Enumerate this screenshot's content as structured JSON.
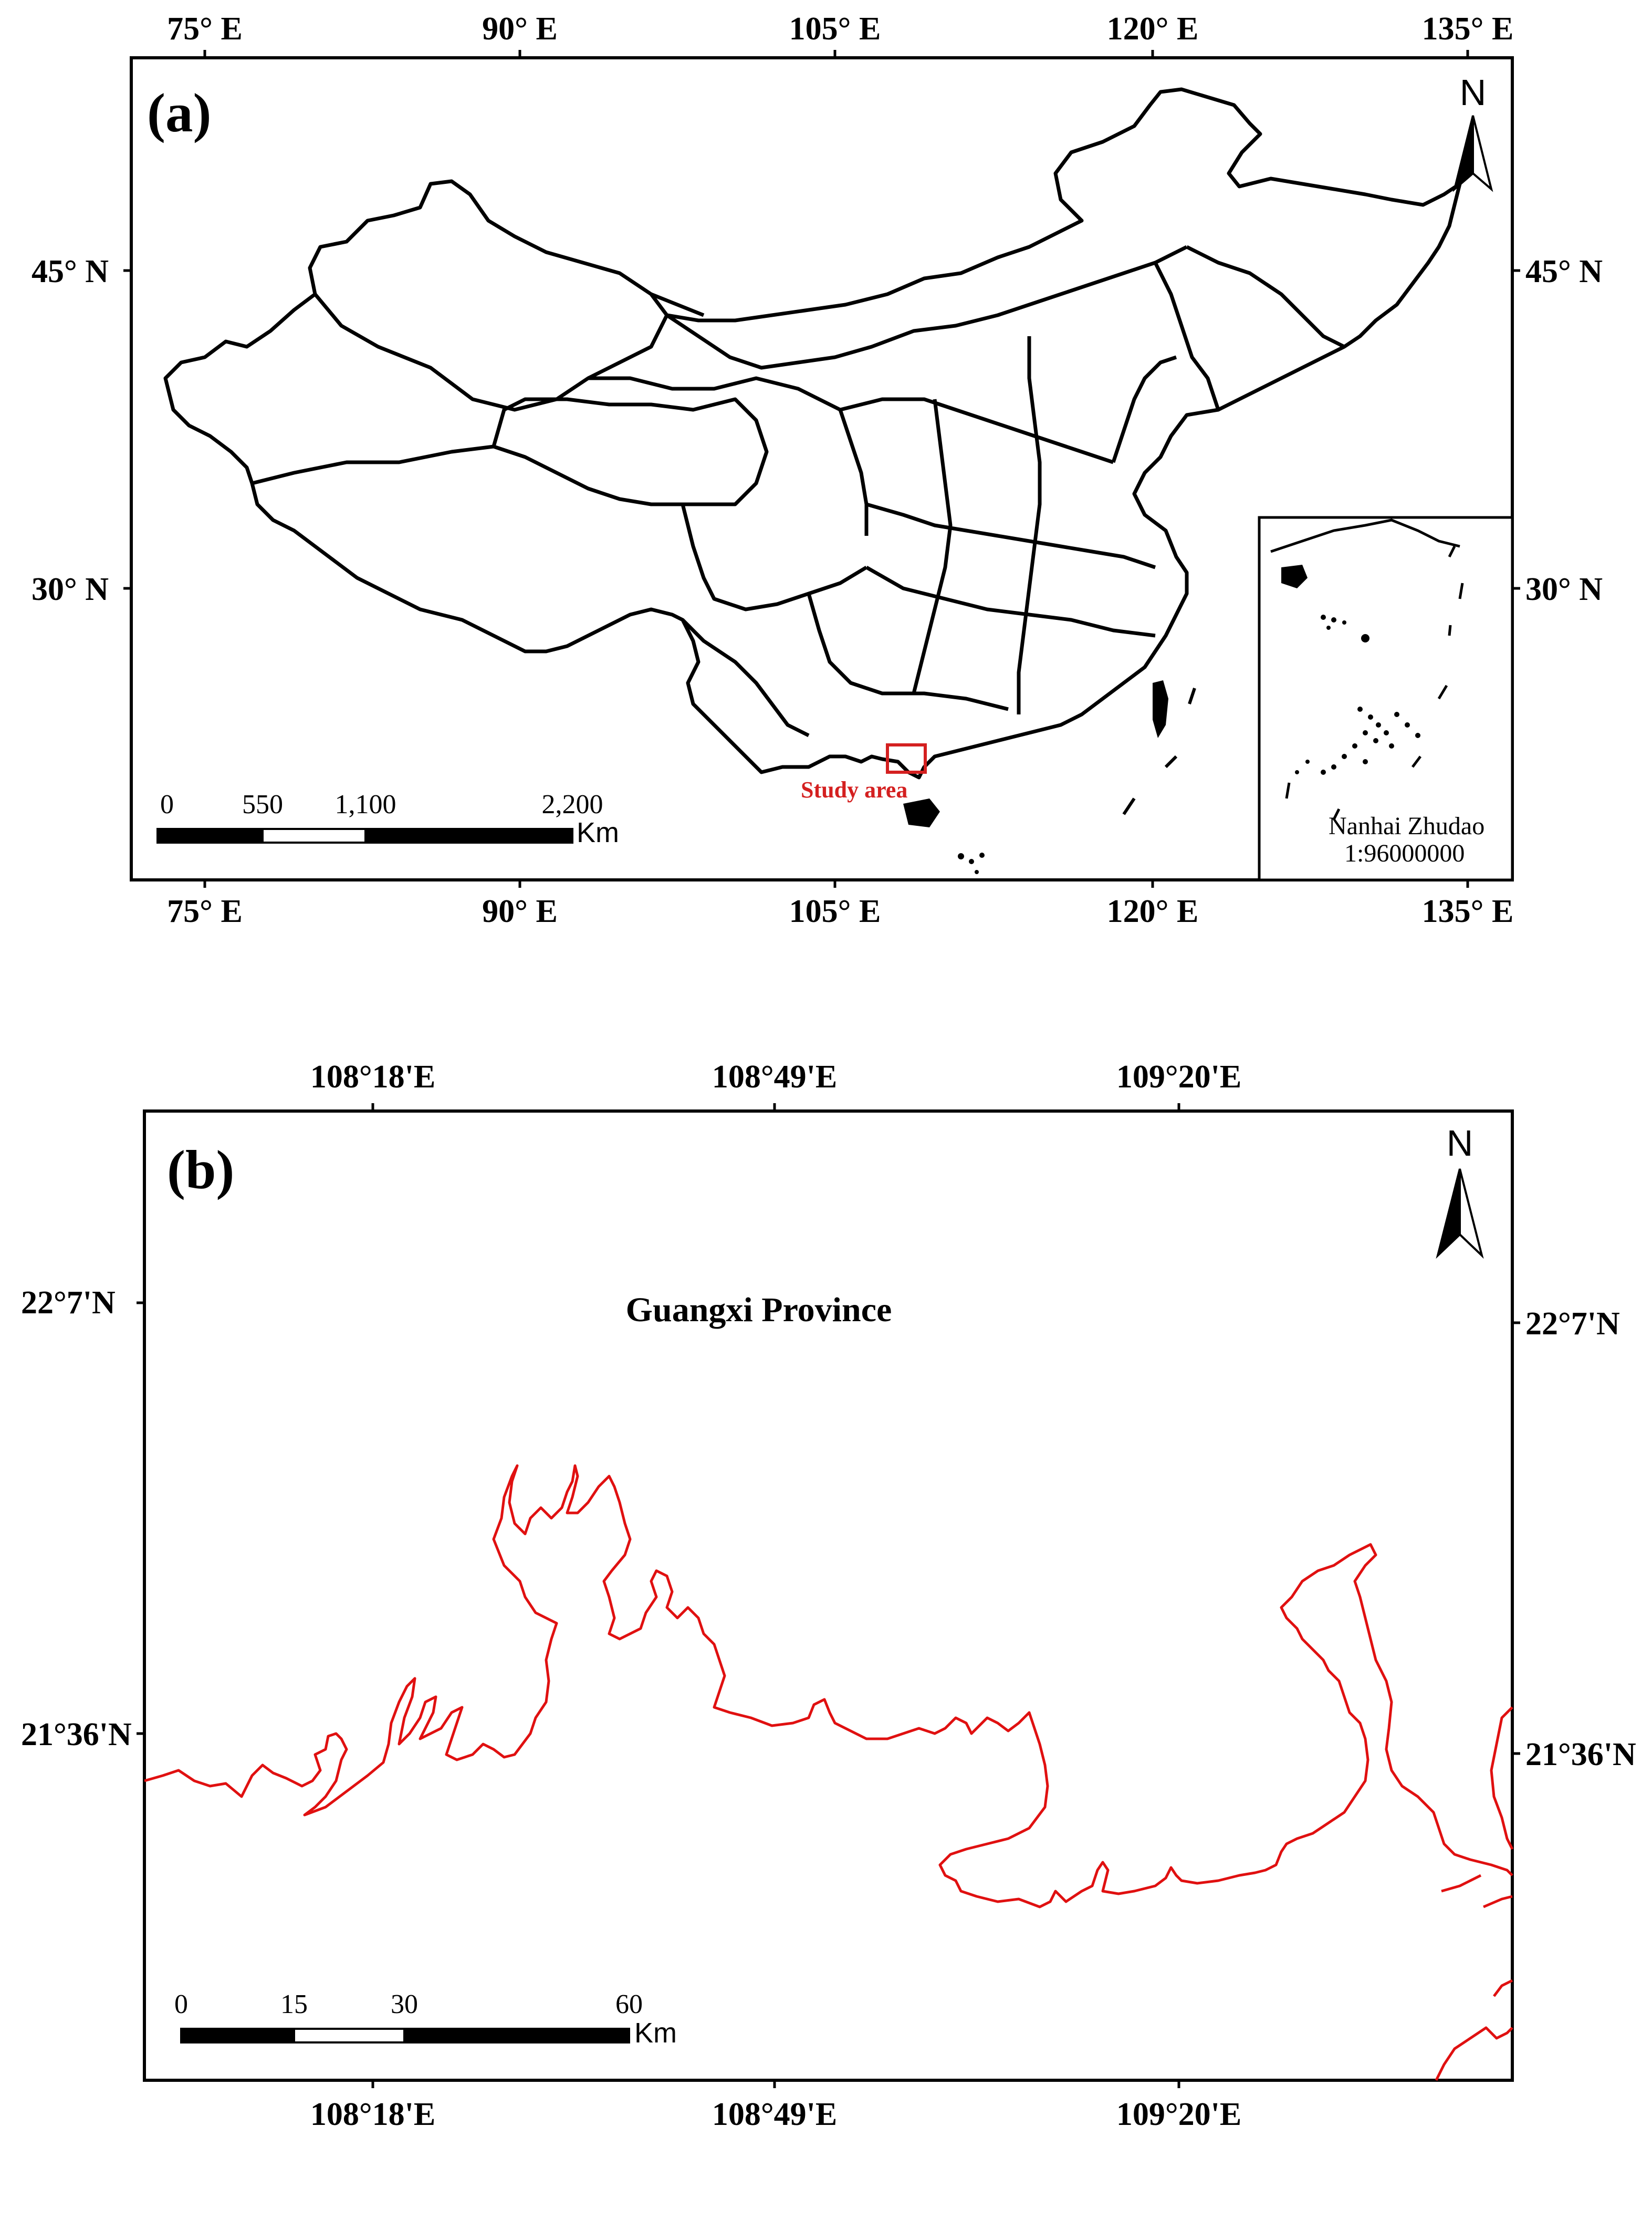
{
  "panel_a": {
    "label": "(a)",
    "top_ticks": [
      "75° E",
      "90° E",
      "105° E",
      "120° E",
      "135° E"
    ],
    "bottom_ticks": [
      "75° E",
      "90° E",
      "105° E",
      "120° E",
      "135° E"
    ],
    "left_ticks": [
      "45° N",
      "30° N"
    ],
    "right_ticks": [
      "45° N",
      "30° N"
    ],
    "north_label": "N",
    "study_area_label": "Study area",
    "scale_labels": [
      "0",
      "550",
      "1,100",
      "2,200"
    ],
    "scale_unit": "Km",
    "inset_title": "Nanhai Zhudao",
    "inset_scale": "1:96000000",
    "study_area_color": "#d42020"
  },
  "panel_b": {
    "label": "(b)",
    "top_ticks": [
      "108°18'E",
      "108°49'E",
      "109°20'E"
    ],
    "bottom_ticks": [
      "108°18'E",
      "108°49'E",
      "109°20'E"
    ],
    "left_ticks": [
      "22°7'N",
      "21°36'N"
    ],
    "right_ticks": [
      "22°7'N",
      "21°36'N"
    ],
    "north_label": "N",
    "region_label": "Guangxi Province",
    "scale_labels": [
      "0",
      "15",
      "30",
      "60"
    ],
    "scale_unit": "Km",
    "coastline_color": "#e01010"
  }
}
